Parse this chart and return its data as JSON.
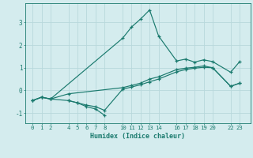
{
  "xlabel": "Humidex (Indice chaleur)",
  "bg_color": "#d4ecee",
  "grid_color": "#b8d8dc",
  "line_color": "#1a7a6e",
  "line1_x": [
    0,
    1,
    2,
    10,
    11,
    12,
    13,
    14,
    16,
    17,
    18,
    19,
    20,
    22,
    23
  ],
  "line1_y": [
    -0.45,
    -0.3,
    -0.38,
    2.3,
    2.8,
    3.15,
    3.55,
    2.4,
    1.3,
    1.38,
    1.25,
    1.35,
    1.27,
    0.8,
    1.27
  ],
  "line2_x": [
    0,
    1,
    2,
    4,
    5,
    6,
    7,
    8,
    10,
    11,
    12,
    13,
    14,
    16,
    17,
    18,
    19,
    20,
    22,
    23
  ],
  "line2_y": [
    -0.45,
    -0.3,
    -0.38,
    -0.45,
    -0.55,
    -0.65,
    -0.72,
    -0.88,
    0.05,
    0.15,
    0.25,
    0.38,
    0.5,
    0.82,
    0.92,
    0.98,
    1.02,
    1.0,
    0.18,
    0.32
  ],
  "line3_x": [
    4,
    5,
    6,
    7,
    8
  ],
  "line3_y": [
    -0.45,
    -0.55,
    -0.72,
    -0.82,
    -1.1
  ],
  "line4_x": [
    0,
    1,
    2,
    4,
    10,
    11,
    12,
    13,
    14,
    16,
    17,
    18,
    19,
    20,
    22,
    23
  ],
  "line4_y": [
    -0.45,
    -0.3,
    -0.38,
    -0.15,
    0.12,
    0.22,
    0.32,
    0.5,
    0.6,
    0.92,
    0.98,
    1.02,
    1.08,
    1.0,
    0.18,
    0.32
  ],
  "xticks": [
    0,
    1,
    2,
    4,
    5,
    6,
    7,
    8,
    10,
    11,
    12,
    13,
    14,
    16,
    17,
    18,
    19,
    20,
    22,
    23
  ],
  "yticks": [
    -1,
    0,
    1,
    2,
    3
  ],
  "ylim": [
    -1.45,
    3.85
  ],
  "xlim": [
    -0.8,
    24.2
  ],
  "figsize": [
    3.2,
    2.0
  ],
  "dpi": 100
}
